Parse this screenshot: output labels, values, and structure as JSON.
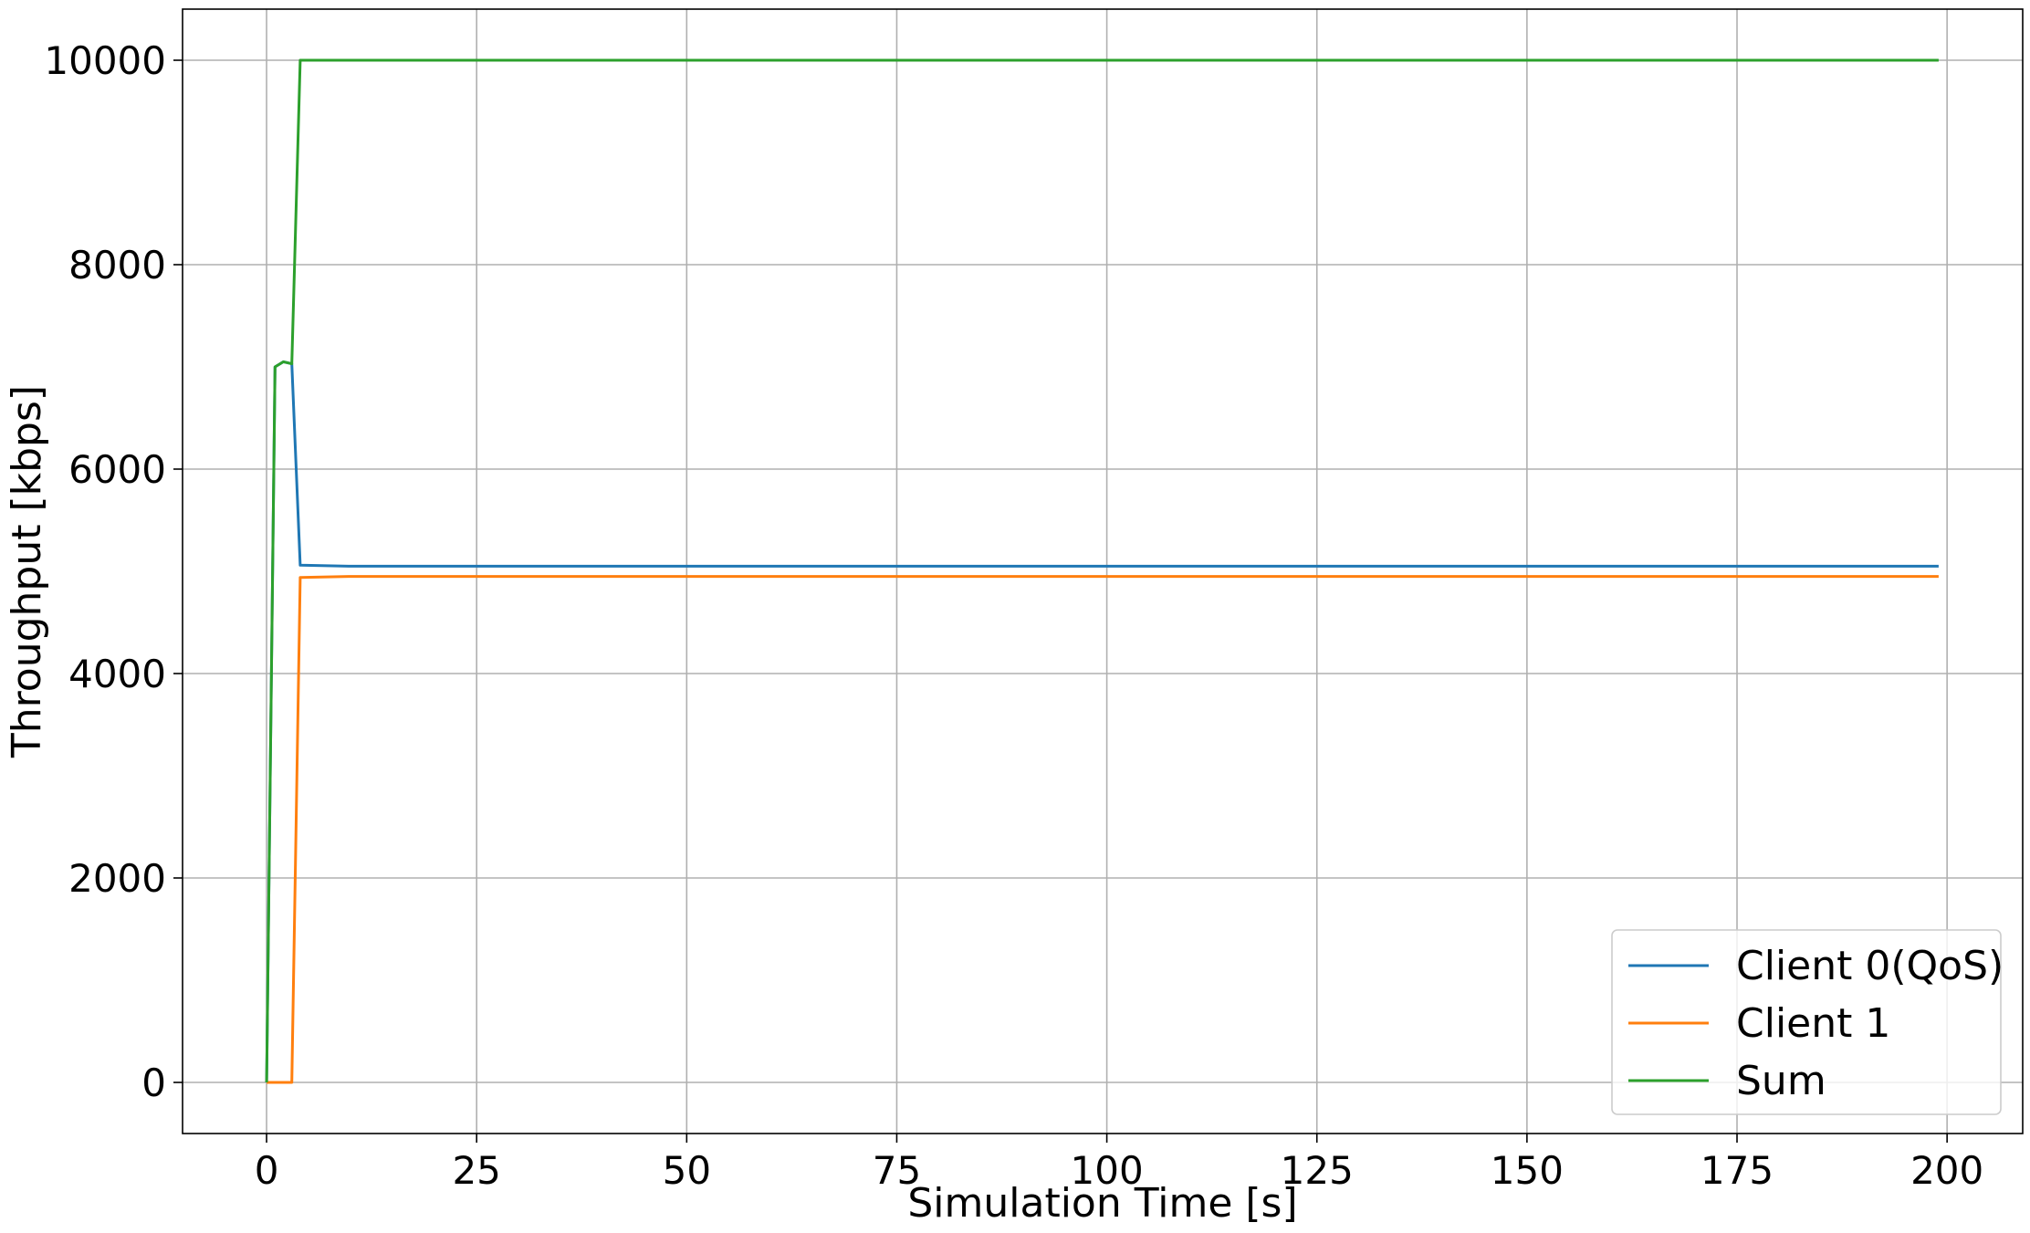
{
  "chart_data": {
    "type": "line",
    "title": "",
    "xlabel": "Simulation Time [s]",
    "ylabel": "Throughput [kbps]",
    "xlim": [
      -10,
      209
    ],
    "ylim": [
      -500,
      10500
    ],
    "xticks": [
      0,
      25,
      50,
      75,
      100,
      125,
      150,
      175,
      200
    ],
    "yticks": [
      0,
      2000,
      4000,
      6000,
      8000,
      10000
    ],
    "grid": true,
    "legend_position": "lower-right",
    "series": [
      {
        "name": "Client 0(QoS)",
        "color": "#1f77b4",
        "x": [
          0,
          1,
          2,
          3,
          4,
          10,
          20,
          30,
          40,
          50,
          60,
          70,
          80,
          90,
          100,
          110,
          120,
          130,
          140,
          150,
          160,
          170,
          180,
          190,
          199
        ],
        "y": [
          0,
          7000,
          7050,
          7030,
          5060,
          5050,
          5050,
          5050,
          5050,
          5050,
          5050,
          5050,
          5050,
          5050,
          5050,
          5050,
          5050,
          5050,
          5050,
          5050,
          5050,
          5050,
          5050,
          5050,
          5050
        ]
      },
      {
        "name": "Client 1",
        "color": "#ff7f0e",
        "x": [
          0,
          1,
          2,
          3,
          4,
          10,
          20,
          30,
          40,
          50,
          60,
          70,
          80,
          90,
          100,
          110,
          120,
          130,
          140,
          150,
          160,
          170,
          180,
          190,
          199
        ],
        "y": [
          0,
          0,
          0,
          0,
          4940,
          4950,
          4950,
          4950,
          4950,
          4950,
          4950,
          4950,
          4950,
          4950,
          4950,
          4950,
          4950,
          4950,
          4950,
          4950,
          4950,
          4950,
          4950,
          4950,
          4950
        ]
      },
      {
        "name": "Sum",
        "color": "#2ca02c",
        "x": [
          0,
          1,
          2,
          3,
          4,
          10,
          20,
          30,
          40,
          50,
          60,
          70,
          80,
          90,
          100,
          110,
          120,
          130,
          140,
          150,
          160,
          170,
          180,
          190,
          199
        ],
        "y": [
          0,
          7000,
          7050,
          7030,
          10000,
          10000,
          10000,
          10000,
          10000,
          10000,
          10000,
          10000,
          10000,
          10000,
          10000,
          10000,
          10000,
          10000,
          10000,
          10000,
          10000,
          10000,
          10000,
          10000,
          10000
        ]
      }
    ]
  }
}
